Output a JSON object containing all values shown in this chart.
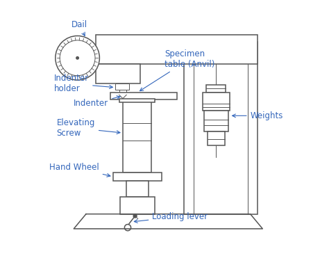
{
  "background_color": "#ffffff",
  "label_color": "#3366bb",
  "line_color": "#555555",
  "labels": {
    "dail": "Dail",
    "indenter_holder": "Indenter\nholder",
    "indenter": "Indenter",
    "elevating_screw": "Elevating\nScrew",
    "hand_wheel": "Hand Wheel",
    "specimen_table": "Specimen\ntable (Anvil)",
    "weights": "Weights",
    "loading_lever": "Loading lever"
  },
  "fig_width": 4.74,
  "fig_height": 3.68,
  "dpi": 100
}
